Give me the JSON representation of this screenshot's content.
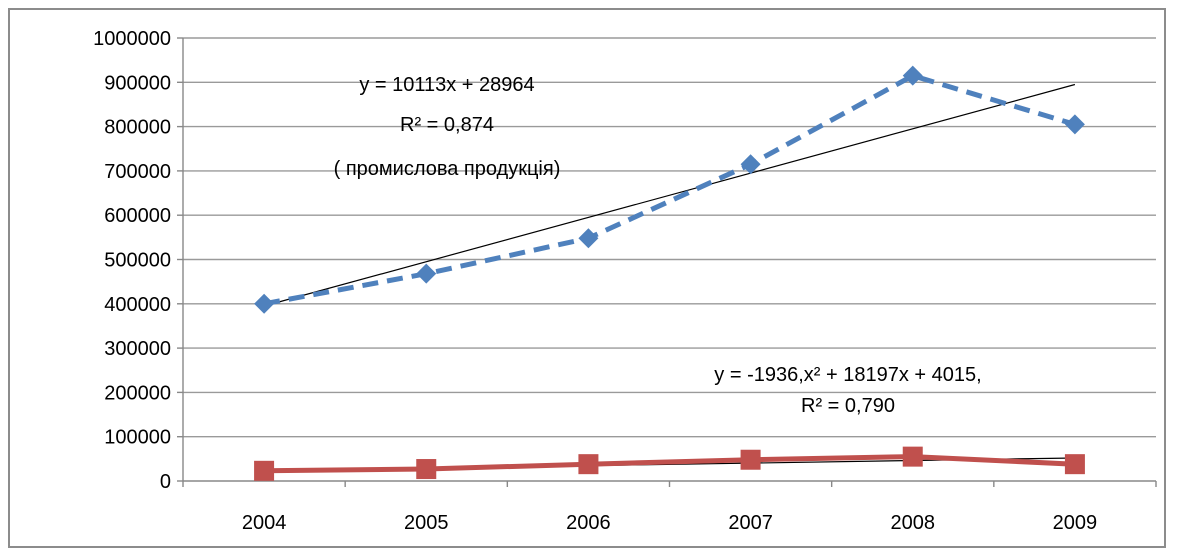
{
  "chart_data": {
    "type": "line",
    "categories": [
      "2004",
      "2005",
      "2006",
      "2007",
      "2008",
      "2009"
    ],
    "ylim": [
      0,
      1000000
    ],
    "yticks": [
      "0",
      "100000",
      "200000",
      "300000",
      "400000",
      "500000",
      "600000",
      "700000",
      "800000",
      "900000",
      "1000000"
    ],
    "grid": true,
    "legend": "none",
    "series": [
      {
        "values": [
          400000,
          468000,
          548000,
          715000,
          915000,
          805000
        ],
        "color": "#4f81bd",
        "style": "dashed",
        "marker": "diamond"
      },
      {
        "values": [
          23000,
          27000,
          38000,
          48000,
          55000,
          38000
        ],
        "color": "#c0504d",
        "style": "solid",
        "marker": "square"
      }
    ],
    "trendlines": [
      {
        "from": 395000,
        "to": 895000,
        "color": "#000000"
      },
      {
        "from": 23000,
        "to": 52000,
        "color": "#000000"
      }
    ],
    "annotations": {
      "top_eq": "y = 10113x + 28964",
      "top_r2": "R² = 0,874",
      "top_note": "( промислова продукція)",
      "bottom_eq": "y = -1936,x² + 18197x + 4015,",
      "bottom_r2": "R² = 0,790"
    }
  }
}
